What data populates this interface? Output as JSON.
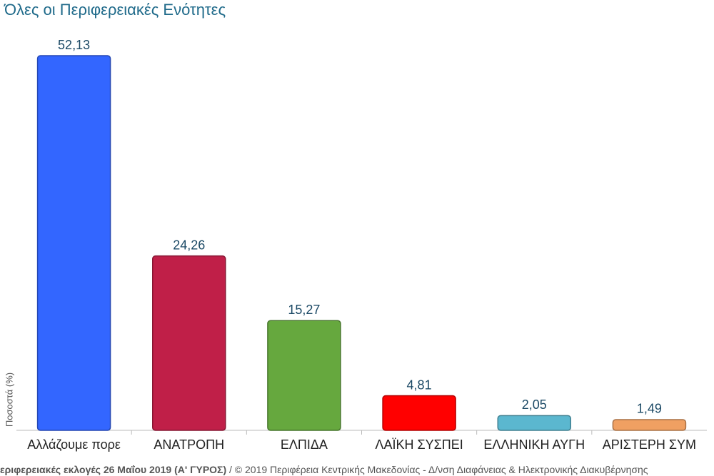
{
  "chart_data": {
    "type": "bar",
    "title": "Όλες οι Περιφερειακές Ενότητες",
    "y_label": "Ποσοστά (%)",
    "categories": [
      "Αλλάζουμε πορε",
      "ΑΝΑΤΡΟΠΗ",
      "ΕΛΠΙΔΑ",
      "ΛΑΪΚΗ ΣΥΣΠΕΙ",
      "ΕΛΛΗΝΙΚΗ ΑΥΓΗ",
      "ΑΡΙΣΤΕΡΗ ΣΥΜ"
    ],
    "values": [
      52.13,
      24.26,
      15.27,
      4.81,
      2.05,
      1.49
    ],
    "value_labels": [
      "52,13",
      "24,26",
      "15,27",
      "4,81",
      "2,05",
      "1,49"
    ],
    "colors": [
      "#3366ff",
      "#c01f48",
      "#66a83e",
      "#ff0000",
      "#5bb7cf",
      "#f0a062"
    ]
  },
  "footer": {
    "source_bold": "εριφερειακές εκλογές 26 Μαΐου 2019 (Α' ΓΥΡΟΣ)",
    "source_rest": " / © 2019 Περιφέρεια Κεντρικής Μακεδονίας - Δ/νση Διαφάνειας & Ηλεκτρονικής Διακυβέρνησης"
  }
}
